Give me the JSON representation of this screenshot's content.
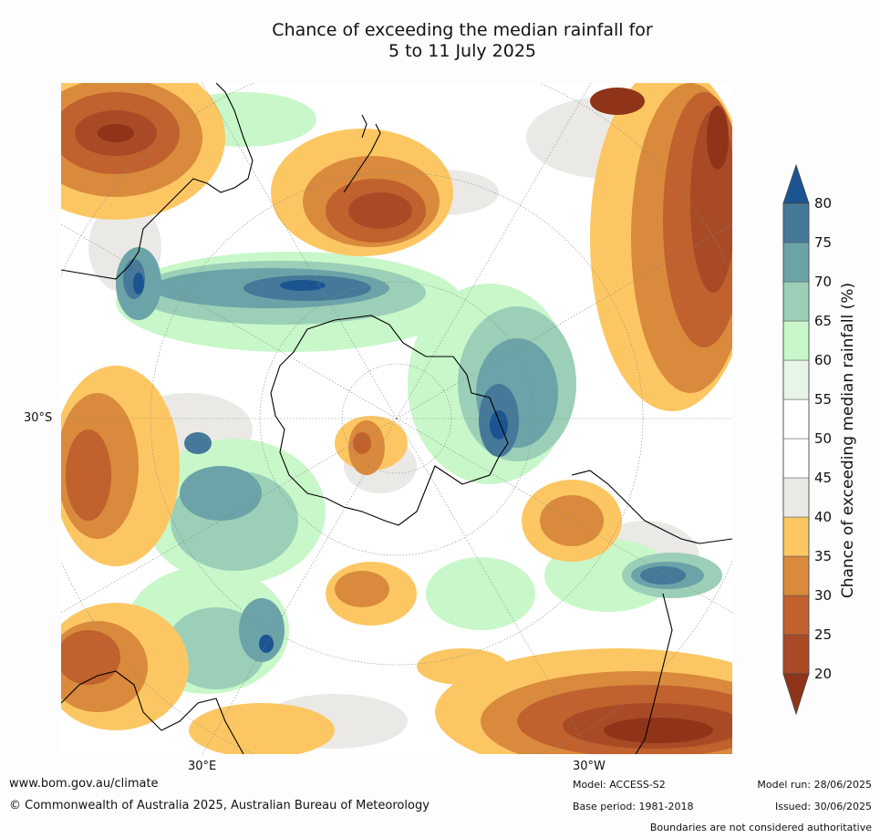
{
  "title": {
    "line1": "Chance of exceeding the median rainfall for",
    "line2": "5 to 11 July 2025"
  },
  "map": {
    "region": "Southern Hemisphere (south polar stereographic)",
    "lat_labels": [
      "30°S"
    ],
    "lon_labels": [
      "30°E",
      "30°W"
    ]
  },
  "colorbar": {
    "label": "Chance of exceeding median rainfall (%)",
    "ticks": [
      "20",
      "25",
      "30",
      "35",
      "40",
      "45",
      "50",
      "55",
      "60",
      "65",
      "70",
      "75",
      "80"
    ],
    "bands": [
      {
        "range": "<20",
        "color": "#8f3419"
      },
      {
        "range": "20-25",
        "color": "#a84a26"
      },
      {
        "range": "25-30",
        "color": "#c0612e"
      },
      {
        "range": "30-35",
        "color": "#d98a3c"
      },
      {
        "range": "35-40",
        "color": "#fcc763"
      },
      {
        "range": "40-45",
        "color": "#ebe9e6"
      },
      {
        "range": "45-50",
        "color": "#ffffff"
      },
      {
        "range": "50-55",
        "color": "#ffffff"
      },
      {
        "range": "55-60",
        "color": "#e7f4e8"
      },
      {
        "range": "60-65",
        "color": "#c8f7ca"
      },
      {
        "range": "65-70",
        "color": "#9bcfb7"
      },
      {
        "range": "70-75",
        "color": "#6ba3a8"
      },
      {
        "range": "75-80",
        "color": "#467899"
      },
      {
        "range": ">80",
        "color": "#1b5490"
      }
    ]
  },
  "footer": {
    "url": "www.bom.gov.au/climate",
    "copyright": "© Commonwealth of Australia 2025, Australian Bureau of Meteorology",
    "model": "Model: ACCESS-S2",
    "base_period": "Base period: 1981-2018",
    "model_run": "Model run: 28/06/2025",
    "issued": "Issued: 30/06/2025",
    "disclaimer": "Boundaries are not considered authoritative"
  }
}
